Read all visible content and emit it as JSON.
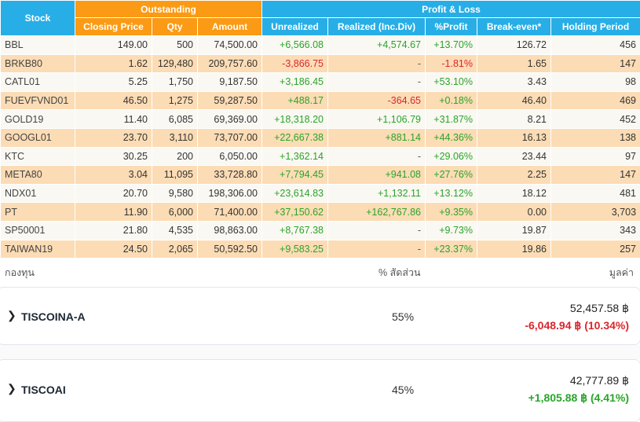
{
  "table": {
    "header": {
      "stock": "Stock",
      "outstanding": "Outstanding",
      "profit_loss": "Profit & Loss",
      "closing_price": "Closing Price",
      "qty": "Qty",
      "amount": "Amount",
      "unrealized": "Unrealized",
      "realized": "Realized (Inc.Div)",
      "pct_profit": "%Profit",
      "break_even": "Break-even*",
      "holding_period": "Holding Period"
    },
    "rows": [
      {
        "stock": "BBL",
        "closing": "149.00",
        "qty": "500",
        "amount": "74,500.00",
        "unrealized": "+6,566.08",
        "realized": "+4,574.67",
        "pct": "+13.70%",
        "breakeven": "126.72",
        "holding": "456"
      },
      {
        "stock": "BRKB80",
        "closing": "1.62",
        "qty": "129,480",
        "amount": "209,757.60",
        "unrealized": "-3,866.75",
        "realized": "-",
        "pct": "-1.81%",
        "breakeven": "1.65",
        "holding": "147"
      },
      {
        "stock": "CATL01",
        "closing": "5.25",
        "qty": "1,750",
        "amount": "9,187.50",
        "unrealized": "+3,186.45",
        "realized": "-",
        "pct": "+53.10%",
        "breakeven": "3.43",
        "holding": "98"
      },
      {
        "stock": "FUEVFVND01",
        "closing": "46.50",
        "qty": "1,275",
        "amount": "59,287.50",
        "unrealized": "+488.17",
        "realized": "-364.65",
        "pct": "+0.18%",
        "breakeven": "46.40",
        "holding": "469"
      },
      {
        "stock": "GOLD19",
        "closing": "11.40",
        "qty": "6,085",
        "amount": "69,369.00",
        "unrealized": "+18,318.20",
        "realized": "+1,106.79",
        "pct": "+31.87%",
        "breakeven": "8.21",
        "holding": "452"
      },
      {
        "stock": "GOOGL01",
        "closing": "23.70",
        "qty": "3,110",
        "amount": "73,707.00",
        "unrealized": "+22,667.38",
        "realized": "+881.14",
        "pct": "+44.36%",
        "breakeven": "16.13",
        "holding": "138"
      },
      {
        "stock": "KTC",
        "closing": "30.25",
        "qty": "200",
        "amount": "6,050.00",
        "unrealized": "+1,362.14",
        "realized": "-",
        "pct": "+29.06%",
        "breakeven": "23.44",
        "holding": "97"
      },
      {
        "stock": "META80",
        "closing": "3.04",
        "qty": "11,095",
        "amount": "33,728.80",
        "unrealized": "+7,794.45",
        "realized": "+941.08",
        "pct": "+27.76%",
        "breakeven": "2.25",
        "holding": "147"
      },
      {
        "stock": "NDX01",
        "closing": "20.70",
        "qty": "9,580",
        "amount": "198,306.00",
        "unrealized": "+23,614.83",
        "realized": "+1,132.11",
        "pct": "+13.12%",
        "breakeven": "18.12",
        "holding": "481"
      },
      {
        "stock": "PT",
        "closing": "11.90",
        "qty": "6,000",
        "amount": "71,400.00",
        "unrealized": "+37,150.62",
        "realized": "+162,767.86",
        "pct": "+9.35%",
        "breakeven": "0.00",
        "holding": "3,703"
      },
      {
        "stock": "SP50001",
        "closing": "21.80",
        "qty": "4,535",
        "amount": "98,863.00",
        "unrealized": "+8,767.38",
        "realized": "-",
        "pct": "+9.73%",
        "breakeven": "19.87",
        "holding": "343"
      },
      {
        "stock": "TAIWAN19",
        "closing": "24.50",
        "qty": "2,065",
        "amount": "50,592.50",
        "unrealized": "+9,583.25",
        "realized": "-",
        "pct": "+23.37%",
        "breakeven": "19.86",
        "holding": "257"
      }
    ]
  },
  "funds": {
    "header": {
      "name": "กองทุน",
      "ratio": "% สัดส่วน",
      "value": "มูลค่า"
    },
    "items": [
      {
        "name": "TISCOINA-A",
        "ratio": "55%",
        "value": "52,457.58 ฿",
        "change": "-6,048.94 ฿  (10.34%)",
        "change_dir": "neg"
      },
      {
        "name": "TISCOAI",
        "ratio": "45%",
        "value": "42,777.89 ฿",
        "change": "+1,805.88 ฿  (4.41%)",
        "change_dir": "pos"
      }
    ]
  },
  "colors": {
    "header_blue": "#27aee6",
    "header_orange": "#fb9a14",
    "row_orange": "#fcdcb5",
    "positive": "#2aa42a",
    "negative": "#d9272e"
  }
}
